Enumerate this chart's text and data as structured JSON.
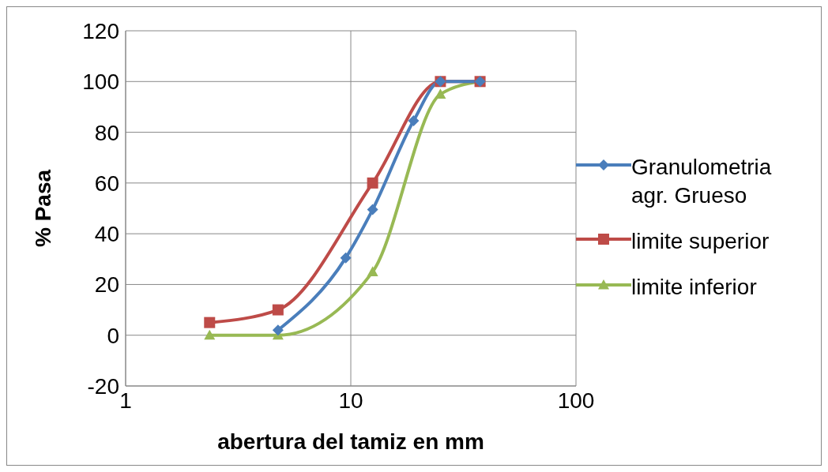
{
  "chart_data": {
    "type": "line",
    "xlabel": "abertura del tamiz en mm",
    "ylabel": "% Pasa",
    "log": "x",
    "xlim": [
      1,
      100
    ],
    "xticks": [
      1,
      10,
      100
    ],
    "ylim": [
      -20,
      120
    ],
    "yticks": [
      -20,
      0,
      20,
      40,
      60,
      80,
      100,
      120
    ],
    "grid": true,
    "legend": "right",
    "series": [
      {
        "name": "Granulometria agr. Grueso",
        "color": "#4a7ebb",
        "marker": "diamond",
        "x": [
          4.75,
          9.5,
          12.5,
          19,
          25,
          37.5
        ],
        "values": [
          2,
          30.5,
          49.5,
          84.5,
          100,
          100
        ]
      },
      {
        "name": "limite superior",
        "color": "#be4b48",
        "marker": "square",
        "x": [
          2.36,
          4.75,
          12.5,
          25,
          37.5
        ],
        "values": [
          5,
          10,
          60,
          100,
          100
        ]
      },
      {
        "name": "limite inferior",
        "color": "#98b954",
        "marker": "triangle",
        "x": [
          2.36,
          4.75,
          12.5,
          25,
          37.5
        ],
        "values": [
          0,
          0,
          25,
          95,
          100
        ]
      }
    ]
  }
}
